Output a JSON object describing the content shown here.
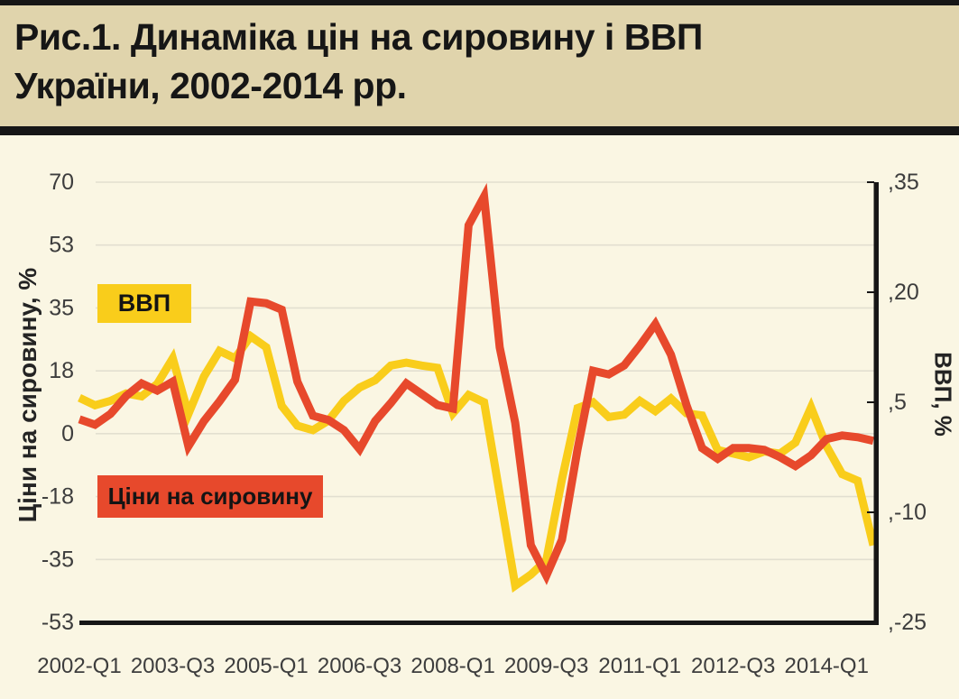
{
  "header": {
    "title_line1": "Рис.1. Динаміка цін на сировину і ВВП",
    "title_line2": "України, 2002-2014 рр."
  },
  "legend": {
    "gdp_label": "ВВП",
    "commodity_label": "Ціни на сировину"
  },
  "colors": {
    "background": "#FAF6E3",
    "header_band": "#E0D4AC",
    "black_bar": "#161616",
    "gridline": "#E2DFD0",
    "tick_text": "#3D3D3D",
    "commodity_red": "#E7492C",
    "gdp_yellow": "#F9CD1B"
  },
  "chart_data": {
    "type": "line",
    "title": "Рис.1. Динаміка цін на сировину і ВВП України, 2002-2014 рр.",
    "frequency": "quarterly",
    "grid": "horizontal-only",
    "x_tick_labels": [
      "2002-Q1",
      "2003-Q3",
      "2005-Q1",
      "2006-Q3",
      "2008-Q1",
      "2009-Q3",
      "2011-Q1",
      "2012-Q3",
      "2014-Q1"
    ],
    "x_tick_indices": [
      0,
      6,
      12,
      18,
      24,
      30,
      36,
      42,
      48
    ],
    "left_axis": {
      "label": "Ціни на сировину, %",
      "tick_labels": [
        "70",
        "53",
        "35",
        "18",
        "0",
        "-18",
        "-35",
        "-53"
      ],
      "tick_values": [
        70,
        52.5,
        35,
        17.5,
        0,
        -17.5,
        -35,
        -52.5
      ],
      "range": [
        -52.5,
        70
      ]
    },
    "right_axis": {
      "label": "ВВП, %",
      "tick_labels": [
        ",35",
        ",20",
        ",5",
        ",-10",
        ",-25"
      ],
      "tick_values": [
        35,
        20,
        5,
        -10,
        -25
      ],
      "range": [
        -25,
        35
      ]
    },
    "quarters": [
      "2002-Q1",
      "2002-Q2",
      "2002-Q3",
      "2002-Q4",
      "2003-Q1",
      "2003-Q2",
      "2003-Q3",
      "2003-Q4",
      "2004-Q1",
      "2004-Q2",
      "2004-Q3",
      "2004-Q4",
      "2005-Q1",
      "2005-Q2",
      "2005-Q3",
      "2005-Q4",
      "2006-Q1",
      "2006-Q2",
      "2006-Q3",
      "2006-Q4",
      "2007-Q1",
      "2007-Q2",
      "2007-Q3",
      "2007-Q4",
      "2008-Q1",
      "2008-Q2",
      "2008-Q3",
      "2008-Q4",
      "2009-Q1",
      "2009-Q2",
      "2009-Q3",
      "2009-Q4",
      "2010-Q1",
      "2010-Q2",
      "2010-Q3",
      "2010-Q4",
      "2011-Q1",
      "2011-Q2",
      "2011-Q3",
      "2011-Q4",
      "2012-Q1",
      "2012-Q2",
      "2012-Q3",
      "2012-Q4",
      "2013-Q1",
      "2013-Q2",
      "2013-Q3",
      "2013-Q4",
      "2014-Q1",
      "2014-Q2",
      "2014-Q3",
      "2014-Q4"
    ],
    "series": [
      {
        "name": "ВВП",
        "axis": "right",
        "color": "#F9CD1B",
        "values": [
          5.6,
          4.6,
          5.2,
          6.2,
          5.8,
          7.5,
          11,
          3.4,
          8.5,
          12,
          11,
          14,
          12.5,
          4.5,
          1.8,
          1.2,
          2.5,
          5.2,
          7,
          8,
          10,
          10.4,
          10,
          9.7,
          3.5,
          6,
          5,
          -7.5,
          -20,
          -18.5,
          -16.5,
          -5.5,
          4.2,
          5,
          3,
          3.3,
          5.2,
          3.8,
          5.5,
          3.5,
          3.2,
          -1.5,
          -2,
          -2.5,
          -1.7,
          -2,
          -0.5,
          4.3,
          -1,
          -4.8,
          -5.7,
          -14.5
        ]
      },
      {
        "name": "Ціни на сировину",
        "axis": "left",
        "color": "#E7492C",
        "values": [
          4,
          2.5,
          5.5,
          10.5,
          14,
          12,
          14.5,
          -3.5,
          3.5,
          9,
          15,
          36.8,
          36.3,
          34.5,
          14.5,
          5,
          3.8,
          1,
          -4.3,
          3.5,
          8.5,
          14,
          11,
          8,
          7,
          58,
          66,
          24,
          3,
          -31,
          -39.5,
          -29.5,
          -4.3,
          17.5,
          16.5,
          19,
          24.5,
          30.5,
          22,
          8,
          -4,
          -7,
          -4,
          -4,
          -4.5,
          -6.5,
          -9,
          -6,
          -1.5,
          -0.5,
          -1,
          -2
        ]
      }
    ],
    "legend_position": "inside-left"
  }
}
